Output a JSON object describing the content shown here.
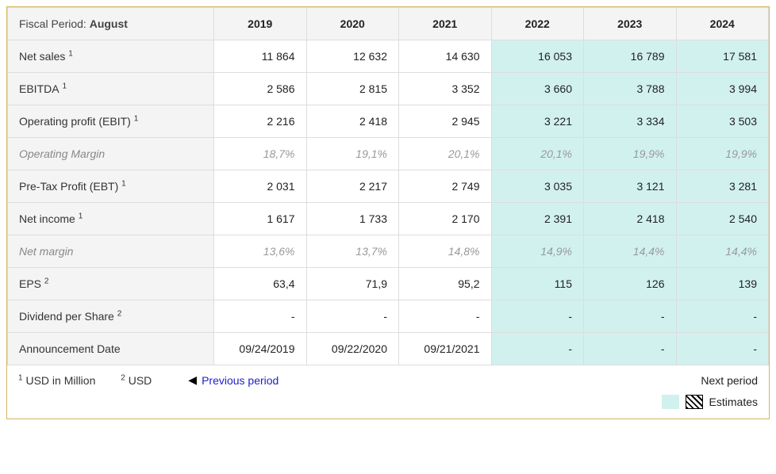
{
  "header": {
    "corner_prefix": "Fiscal Period: ",
    "corner_bold": "August",
    "years": [
      "2019",
      "2020",
      "2021",
      "2022",
      "2023",
      "2024"
    ],
    "estimate_start_index": 3
  },
  "rows": [
    {
      "label": "Net sales",
      "sup": "1",
      "derived": false,
      "values": [
        "11 864",
        "12 632",
        "14 630",
        "16 053",
        "16 789",
        "17 581"
      ]
    },
    {
      "label": "EBITDA",
      "sup": "1",
      "derived": false,
      "values": [
        "2 586",
        "2 815",
        "3 352",
        "3 660",
        "3 788",
        "3 994"
      ]
    },
    {
      "label": "Operating profit (EBIT)",
      "sup": "1",
      "derived": false,
      "values": [
        "2 216",
        "2 418",
        "2 945",
        "3 221",
        "3 334",
        "3 503"
      ]
    },
    {
      "label": "Operating Margin",
      "sup": "",
      "derived": true,
      "values": [
        "18,7%",
        "19,1%",
        "20,1%",
        "20,1%",
        "19,9%",
        "19,9%"
      ]
    },
    {
      "label": "Pre-Tax Profit (EBT)",
      "sup": "1",
      "derived": false,
      "values": [
        "2 031",
        "2 217",
        "2 749",
        "3 035",
        "3 121",
        "3 281"
      ]
    },
    {
      "label": "Net income",
      "sup": "1",
      "derived": false,
      "values": [
        "1 617",
        "1 733",
        "2 170",
        "2 391",
        "2 418",
        "2 540"
      ]
    },
    {
      "label": "Net margin",
      "sup": "",
      "derived": true,
      "values": [
        "13,6%",
        "13,7%",
        "14,8%",
        "14,9%",
        "14,4%",
        "14,4%"
      ]
    },
    {
      "label": "EPS",
      "sup": "2",
      "derived": false,
      "values": [
        "63,4",
        "71,9",
        "95,2",
        "115",
        "126",
        "139"
      ]
    },
    {
      "label": "Dividend per Share",
      "sup": "2",
      "derived": false,
      "values": [
        "-",
        "-",
        "-",
        "-",
        "-",
        "-"
      ]
    },
    {
      "label": "Announcement Date",
      "sup": "",
      "derived": false,
      "values": [
        "09/24/2019",
        "09/22/2020",
        "09/21/2021",
        "-",
        "-",
        "-"
      ]
    }
  ],
  "footer": {
    "footnote1": "USD in Million",
    "footnote2": "USD",
    "prev_label": "Previous period",
    "next_label": "Next period",
    "legend_label": "Estimates"
  },
  "colors": {
    "estimate_bg": "#d1f1ef",
    "header_bg": "#f4f4f4",
    "border": "#dddddd",
    "frame_border": "#d4b55e",
    "derived_text": "#999999",
    "link": "#2020cc"
  }
}
